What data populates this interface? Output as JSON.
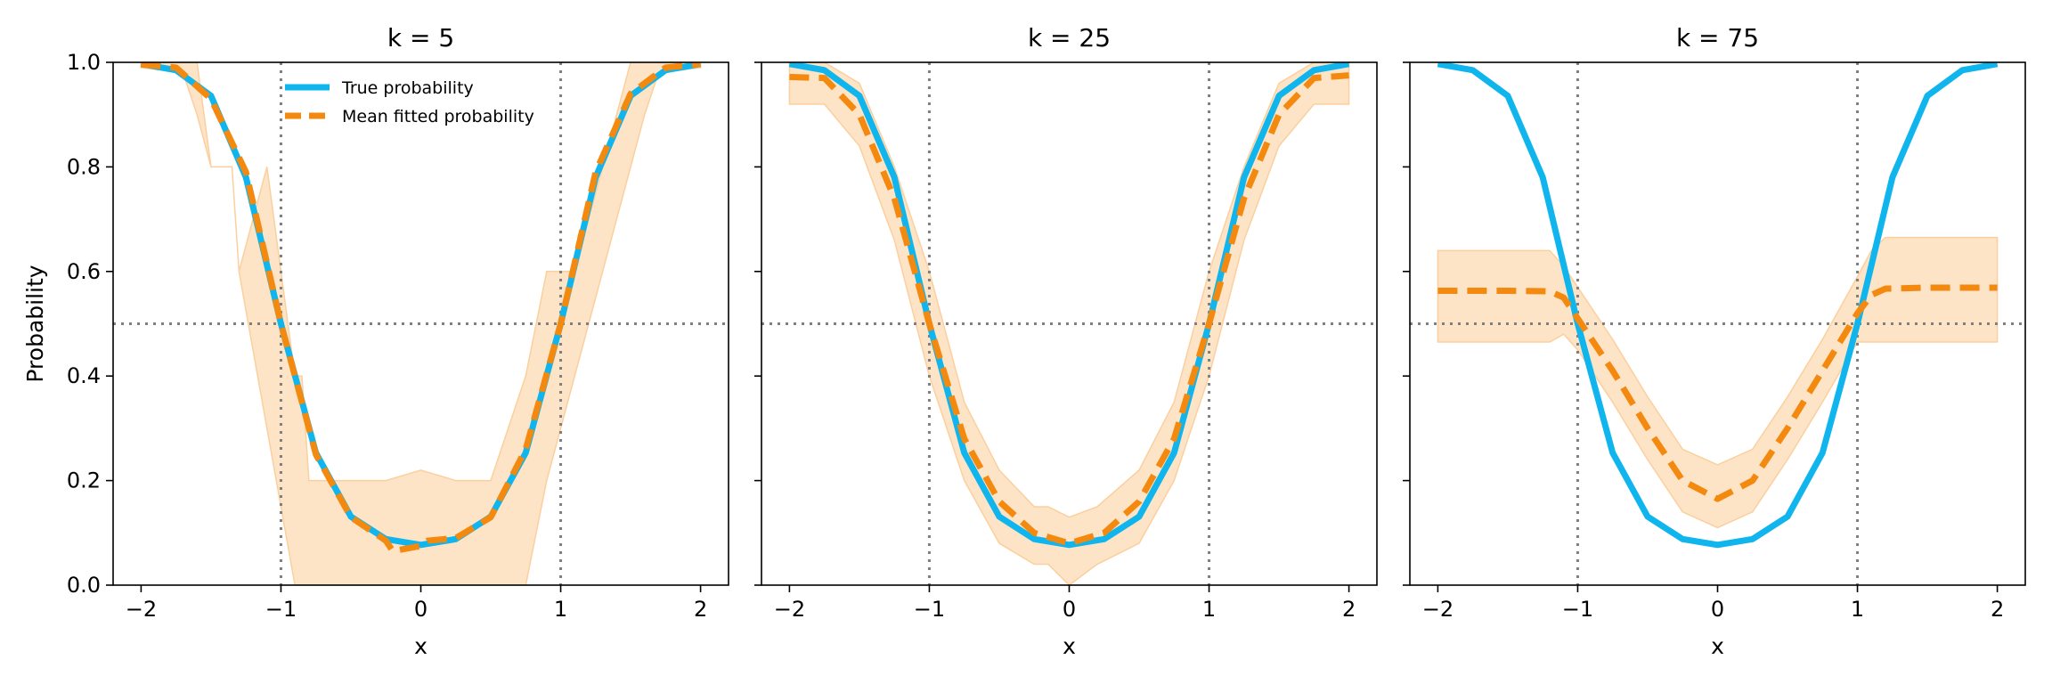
{
  "figure": {
    "ylabel": "Probability",
    "legend": {
      "placement": "top-left of first panel",
      "entries": [
        "True probability",
        "Mean fitted probability"
      ]
    },
    "colors": {
      "true": "#0fb5ec",
      "fitted": "#f4890f",
      "band": "#fde4c6",
      "band_edge": "#fbcf9e",
      "reference": "#7f7f7f"
    }
  },
  "chart_data": [
    {
      "type": "line",
      "title": "k = 5",
      "xlabel": "x",
      "ylabel": "Probability",
      "xlim": [
        -2.2,
        2.2
      ],
      "ylim": [
        0,
        1
      ],
      "xticks": [
        -2,
        -1,
        0,
        1,
        2
      ],
      "yticks": [
        0.0,
        0.2,
        0.4,
        0.6,
        0.8,
        1.0
      ],
      "reference_lines": {
        "vertical_x": [
          -1,
          1
        ],
        "horizontal_y": [
          0.5
        ]
      },
      "series": [
        {
          "name": "True probability",
          "style": "solid",
          "x": [
            -2,
            -1.75,
            -1.5,
            -1.25,
            -1,
            -0.75,
            -0.5,
            -0.25,
            0,
            0.25,
            0.5,
            0.75,
            1,
            1.25,
            1.5,
            1.75,
            2
          ],
          "y": [
            0.997,
            0.985,
            0.936,
            0.78,
            0.5,
            0.253,
            0.131,
            0.088,
            0.077,
            0.088,
            0.131,
            0.253,
            0.5,
            0.78,
            0.936,
            0.985,
            0.997
          ]
        },
        {
          "name": "Mean fitted probability",
          "style": "dashed",
          "x": [
            -2,
            -1.75,
            -1.5,
            -1.25,
            -1,
            -0.75,
            -0.5,
            -0.25,
            -0.2,
            0,
            0.05,
            0.25,
            0.5,
            0.75,
            1,
            1.25,
            1.5,
            1.75,
            2
          ],
          "y": [
            0.996,
            0.99,
            0.93,
            0.79,
            0.5,
            0.25,
            0.13,
            0.085,
            0.065,
            0.075,
            0.085,
            0.09,
            0.13,
            0.26,
            0.5,
            0.79,
            0.94,
            0.99,
            0.997
          ]
        },
        {
          "name": "band",
          "style": "band",
          "x": [
            -2,
            -1.7,
            -1.6,
            -1.5,
            -1.35,
            -1.3,
            -1.1,
            -0.9,
            -0.85,
            -0.8,
            -0.5,
            -0.25,
            0,
            0.25,
            0.5,
            0.75,
            0.9,
            1.1,
            1.3,
            1.5,
            1.6,
            1.7,
            2
          ],
          "upper": [
            1,
            1,
            1,
            0.8,
            0.8,
            0.6,
            0.8,
            0.4,
            0.4,
            0.2,
            0.2,
            0.2,
            0.22,
            0.2,
            0.2,
            0.4,
            0.6,
            0.6,
            0.8,
            1,
            1,
            1,
            1
          ],
          "lower": [
            0.99,
            0.98,
            0.9,
            0.8,
            0.8,
            0.6,
            0.3,
            0.0,
            0.0,
            0.0,
            0.0,
            0.0,
            0.0,
            0.0,
            0.0,
            0.0,
            0.2,
            0.4,
            0.6,
            0.8,
            0.9,
            0.98,
            0.99
          ]
        }
      ]
    },
    {
      "type": "line",
      "title": "k = 25",
      "xlabel": "x",
      "xlim": [
        -2.2,
        2.2
      ],
      "ylim": [
        0,
        1
      ],
      "xticks": [
        -2,
        -1,
        0,
        1,
        2
      ],
      "yticks": [
        0.0,
        0.2,
        0.4,
        0.6,
        0.8,
        1.0
      ],
      "reference_lines": {
        "vertical_x": [
          -1,
          1
        ],
        "horizontal_y": [
          0.5
        ]
      },
      "series": [
        {
          "name": "True probability",
          "style": "solid",
          "x": [
            -2,
            -1.75,
            -1.5,
            -1.25,
            -1,
            -0.75,
            -0.5,
            -0.25,
            0,
            0.25,
            0.5,
            0.75,
            1,
            1.25,
            1.5,
            1.75,
            2
          ],
          "y": [
            0.997,
            0.985,
            0.936,
            0.78,
            0.5,
            0.253,
            0.131,
            0.088,
            0.077,
            0.088,
            0.131,
            0.253,
            0.5,
            0.78,
            0.936,
            0.985,
            0.997
          ]
        },
        {
          "name": "Mean fitted probability",
          "style": "dashed",
          "x": [
            -2,
            -1.75,
            -1.5,
            -1.25,
            -1,
            -0.75,
            -0.5,
            -0.25,
            0,
            0.25,
            0.5,
            0.75,
            1,
            1.25,
            1.5,
            1.75,
            2
          ],
          "y": [
            0.972,
            0.97,
            0.9,
            0.74,
            0.5,
            0.28,
            0.16,
            0.1,
            0.08,
            0.1,
            0.16,
            0.28,
            0.5,
            0.74,
            0.9,
            0.97,
            0.975
          ]
        },
        {
          "name": "band",
          "style": "band",
          "x": [
            -2,
            -1.75,
            -1.5,
            -1.25,
            -1,
            -0.75,
            -0.5,
            -0.25,
            -0.15,
            0,
            0.2,
            0.5,
            0.75,
            1,
            1.25,
            1.5,
            1.75,
            2
          ],
          "upper": [
            1,
            1,
            0.96,
            0.8,
            0.6,
            0.35,
            0.22,
            0.15,
            0.15,
            0.13,
            0.15,
            0.22,
            0.35,
            0.6,
            0.8,
            0.96,
            1,
            1
          ],
          "lower": [
            0.92,
            0.92,
            0.84,
            0.66,
            0.4,
            0.2,
            0.08,
            0.04,
            0.04,
            0.0,
            0.04,
            0.08,
            0.2,
            0.4,
            0.66,
            0.84,
            0.92,
            0.92
          ]
        }
      ]
    },
    {
      "type": "line",
      "title": "k = 75",
      "xlabel": "x",
      "xlim": [
        -2.2,
        2.2
      ],
      "ylim": [
        0,
        1
      ],
      "xticks": [
        -2,
        -1,
        0,
        1,
        2
      ],
      "yticks": [
        0.0,
        0.2,
        0.4,
        0.6,
        0.8,
        1.0
      ],
      "reference_lines": {
        "vertical_x": [
          -1,
          1
        ],
        "horizontal_y": [
          0.5
        ]
      },
      "series": [
        {
          "name": "True probability",
          "style": "solid",
          "x": [
            -2,
            -1.75,
            -1.5,
            -1.25,
            -1,
            -0.75,
            -0.5,
            -0.25,
            0,
            0.25,
            0.5,
            0.75,
            1,
            1.25,
            1.5,
            1.75,
            2
          ],
          "y": [
            0.997,
            0.985,
            0.936,
            0.78,
            0.5,
            0.253,
            0.131,
            0.088,
            0.077,
            0.088,
            0.131,
            0.253,
            0.5,
            0.78,
            0.936,
            0.985,
            0.997
          ]
        },
        {
          "name": "Mean fitted probability",
          "style": "dashed",
          "x": [
            -2,
            -1.5,
            -1.2,
            -1.1,
            -1,
            -0.75,
            -0.5,
            -0.25,
            0,
            0.25,
            0.5,
            0.75,
            1,
            1.1,
            1.2,
            1.5,
            2
          ],
          "y": [
            0.563,
            0.563,
            0.562,
            0.55,
            0.51,
            0.41,
            0.3,
            0.2,
            0.165,
            0.2,
            0.3,
            0.41,
            0.52,
            0.555,
            0.567,
            0.569,
            0.569
          ]
        },
        {
          "name": "band",
          "style": "band",
          "x": [
            -2,
            -1.5,
            -1.2,
            -1.1,
            -1,
            -0.75,
            -0.5,
            -0.25,
            0,
            0.25,
            0.5,
            0.75,
            1,
            1.1,
            1.2,
            1.5,
            2
          ],
          "upper": [
            0.64,
            0.64,
            0.64,
            0.61,
            0.57,
            0.47,
            0.36,
            0.26,
            0.23,
            0.26,
            0.36,
            0.47,
            0.59,
            0.64,
            0.665,
            0.665,
            0.665
          ],
          "lower": [
            0.465,
            0.465,
            0.465,
            0.48,
            0.45,
            0.35,
            0.24,
            0.14,
            0.11,
            0.14,
            0.24,
            0.35,
            0.465,
            0.465,
            0.465,
            0.465,
            0.465
          ]
        }
      ]
    }
  ]
}
